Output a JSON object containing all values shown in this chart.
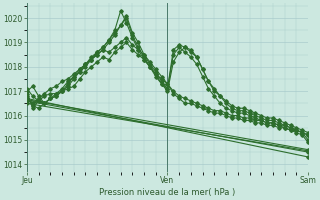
{
  "bg_color": "#cce8e0",
  "grid_color": "#aacccc",
  "line_color": "#2d6e2d",
  "marker_color": "#2d6e2d",
  "title": "Pression niveau de la mer( hPa )",
  "ylabel_ticks": [
    1014,
    1015,
    1016,
    1017,
    1018,
    1019,
    1020
  ],
  "ylim": [
    1013.7,
    1020.6
  ],
  "xlim": [
    0,
    48
  ],
  "xtick_positions": [
    0,
    24,
    48
  ],
  "xtick_labels": [
    "Jeu",
    "Ven",
    "Sam"
  ],
  "trend1_x": [
    0,
    48
  ],
  "trend1_y": [
    1016.7,
    1014.3
  ],
  "trend2_x": [
    0,
    48
  ],
  "trend2_y": [
    1016.6,
    1014.5
  ],
  "trend3_x": [
    0,
    48
  ],
  "trend3_y": [
    1016.5,
    1014.55
  ],
  "trend4_x": [
    0,
    48
  ],
  "trend4_y": [
    1016.65,
    1014.6
  ],
  "line_a_x": [
    0,
    1,
    2,
    3,
    4,
    5,
    6,
    7,
    8,
    9,
    10,
    11,
    12,
    13,
    14,
    15,
    16,
    17,
    18,
    19,
    20,
    21,
    22,
    23,
    24,
    25,
    26,
    27,
    28,
    29,
    30,
    31,
    32,
    33,
    34,
    35,
    36,
    37,
    38,
    39,
    40,
    41,
    42,
    43,
    44,
    45,
    46,
    47,
    48
  ],
  "line_a_y": [
    1016.9,
    1016.3,
    1016.6,
    1016.8,
    1016.9,
    1016.9,
    1017.0,
    1017.1,
    1017.2,
    1017.5,
    1017.8,
    1018.0,
    1018.2,
    1018.4,
    1018.3,
    1018.6,
    1018.8,
    1019.0,
    1018.7,
    1018.5,
    1018.3,
    1018.0,
    1017.7,
    1017.5,
    1017.3,
    1017.0,
    1016.8,
    1016.7,
    1016.6,
    1016.5,
    1016.4,
    1016.3,
    1016.2,
    1016.2,
    1016.1,
    1016.0,
    1016.0,
    1015.9,
    1015.9,
    1015.8,
    1015.8,
    1015.7,
    1015.7,
    1015.6,
    1015.6,
    1015.5,
    1015.4,
    1015.3,
    1015.2
  ],
  "line_b_x": [
    0,
    1,
    2,
    3,
    4,
    5,
    6,
    7,
    8,
    9,
    10,
    11,
    12,
    13,
    14,
    15,
    16,
    17,
    18,
    19,
    20,
    21,
    22,
    23,
    24,
    25,
    26,
    27,
    28,
    29,
    30,
    31,
    32,
    33,
    34,
    35,
    36,
    37,
    38,
    39,
    40,
    41,
    42,
    43,
    44,
    45,
    46,
    47,
    48
  ],
  "line_b_y": [
    1016.7,
    1016.5,
    1016.7,
    1016.9,
    1017.1,
    1017.2,
    1017.4,
    1017.5,
    1017.7,
    1017.9,
    1018.1,
    1018.3,
    1018.5,
    1018.7,
    1018.6,
    1018.8,
    1019.0,
    1019.2,
    1018.9,
    1018.7,
    1018.5,
    1018.2,
    1017.9,
    1017.6,
    1017.3,
    1016.9,
    1016.7,
    1016.5,
    1016.5,
    1016.4,
    1016.3,
    1016.2,
    1016.1,
    1016.1,
    1016.0,
    1015.9,
    1015.9,
    1015.8,
    1015.8,
    1015.7,
    1015.7,
    1015.6,
    1015.6,
    1015.5,
    1015.5,
    1015.4,
    1015.4,
    1015.3,
    1015.2
  ],
  "line_c_x": [
    0,
    1,
    2,
    3,
    4,
    5,
    6,
    7,
    8,
    9,
    10,
    11,
    12,
    13,
    14,
    15,
    16,
    17,
    18,
    19,
    20,
    21,
    22,
    23,
    24,
    25,
    26,
    27,
    28,
    29,
    30,
    31,
    32,
    33,
    34,
    35,
    36,
    37,
    38,
    39,
    40,
    41,
    42,
    43,
    44,
    45,
    46,
    47,
    48
  ],
  "line_c_y": [
    1017.1,
    1016.8,
    1016.6,
    1016.5,
    1016.7,
    1016.8,
    1017.0,
    1017.2,
    1017.5,
    1017.8,
    1018.0,
    1018.3,
    1018.5,
    1018.7,
    1019.0,
    1019.3,
    1019.7,
    1020.1,
    1019.4,
    1019.0,
    1018.5,
    1018.1,
    1017.8,
    1017.4,
    1017.1,
    1018.7,
    1018.9,
    1018.8,
    1018.6,
    1018.4,
    1017.9,
    1017.4,
    1017.1,
    1016.8,
    1016.6,
    1016.4,
    1016.3,
    1016.3,
    1016.2,
    1016.1,
    1016.0,
    1015.9,
    1015.9,
    1015.8,
    1015.7,
    1015.6,
    1015.5,
    1015.4,
    1015.3
  ],
  "line_d_x": [
    0,
    1,
    2,
    3,
    4,
    5,
    6,
    7,
    8,
    9,
    10,
    11,
    12,
    13,
    14,
    15,
    16,
    17,
    18,
    19,
    20,
    21,
    22,
    23,
    24,
    25,
    26,
    27,
    28,
    29,
    30,
    31,
    32,
    33,
    34,
    35,
    36,
    37,
    38,
    39,
    40,
    41,
    42,
    43,
    44,
    45,
    46,
    47,
    48
  ],
  "line_d_y": [
    1016.8,
    1016.4,
    1016.3,
    1016.5,
    1016.7,
    1016.9,
    1017.1,
    1017.4,
    1017.6,
    1017.9,
    1018.1,
    1018.4,
    1018.6,
    1018.8,
    1019.1,
    1019.5,
    1020.3,
    1019.8,
    1019.2,
    1018.7,
    1018.3,
    1018.0,
    1017.7,
    1017.3,
    1017.1,
    1018.5,
    1018.8,
    1018.6,
    1018.4,
    1018.1,
    1017.6,
    1017.1,
    1016.8,
    1016.5,
    1016.3,
    1016.2,
    1016.1,
    1016.1,
    1016.0,
    1015.9,
    1015.8,
    1015.7,
    1015.7,
    1015.6,
    1015.5,
    1015.4,
    1015.3,
    1015.2,
    1014.9
  ],
  "line_e_x": [
    0,
    1,
    2,
    3,
    4,
    5,
    6,
    7,
    8,
    9,
    10,
    11,
    12,
    13,
    14,
    15,
    16,
    17,
    18,
    19,
    20,
    21,
    22,
    23,
    24,
    25,
    26,
    27,
    28,
    29,
    30,
    31,
    32,
    33,
    34,
    35,
    36,
    37,
    38,
    39,
    40,
    41,
    42,
    43,
    44,
    45,
    46,
    47,
    48
  ],
  "line_e_y": [
    1017.0,
    1017.2,
    1016.8,
    1016.5,
    1016.7,
    1016.8,
    1017.0,
    1017.3,
    1017.6,
    1017.8,
    1018.1,
    1018.3,
    1018.6,
    1018.8,
    1019.1,
    1019.4,
    1019.7,
    1020.0,
    1019.3,
    1018.8,
    1018.4,
    1018.0,
    1017.6,
    1017.3,
    1017.0,
    1018.2,
    1018.6,
    1018.8,
    1018.7,
    1018.4,
    1017.9,
    1017.4,
    1017.0,
    1016.8,
    1016.5,
    1016.3,
    1016.2,
    1016.2,
    1016.1,
    1016.0,
    1015.9,
    1015.8,
    1015.8,
    1015.7,
    1015.6,
    1015.5,
    1015.4,
    1015.3,
    1015.0
  ]
}
